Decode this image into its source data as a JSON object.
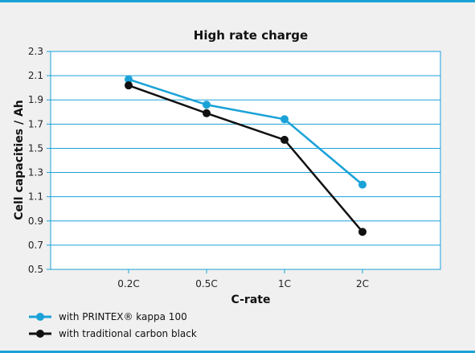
{
  "chart_data": {
    "type": "line",
    "title": "High rate charge",
    "xlabel": "C-rate",
    "ylabel": "Cell capacities / Ah",
    "categories": [
      "0.2C",
      "0.5C",
      "1C",
      "2C"
    ],
    "ylim": [
      0.5,
      2.3
    ],
    "yticks": [
      "2.3",
      "2.1",
      "1.9",
      "1.7",
      "1.5",
      "1.3",
      "1.1",
      "0.9",
      "0.7",
      "0.5"
    ],
    "grid": true,
    "legend_position": "bottom-left",
    "series": [
      {
        "name": "with PRINTEX® kappa 100",
        "color": "#1aa2d8",
        "values": [
          2.07,
          1.86,
          1.74,
          1.2
        ]
      },
      {
        "name": "with traditional carbon black",
        "color": "#111111",
        "values": [
          2.02,
          1.79,
          1.57,
          0.81
        ]
      }
    ]
  },
  "colors": {
    "accent": "#1aa2d8",
    "background": "#f0f0f0",
    "plot_background": "#ffffff"
  }
}
